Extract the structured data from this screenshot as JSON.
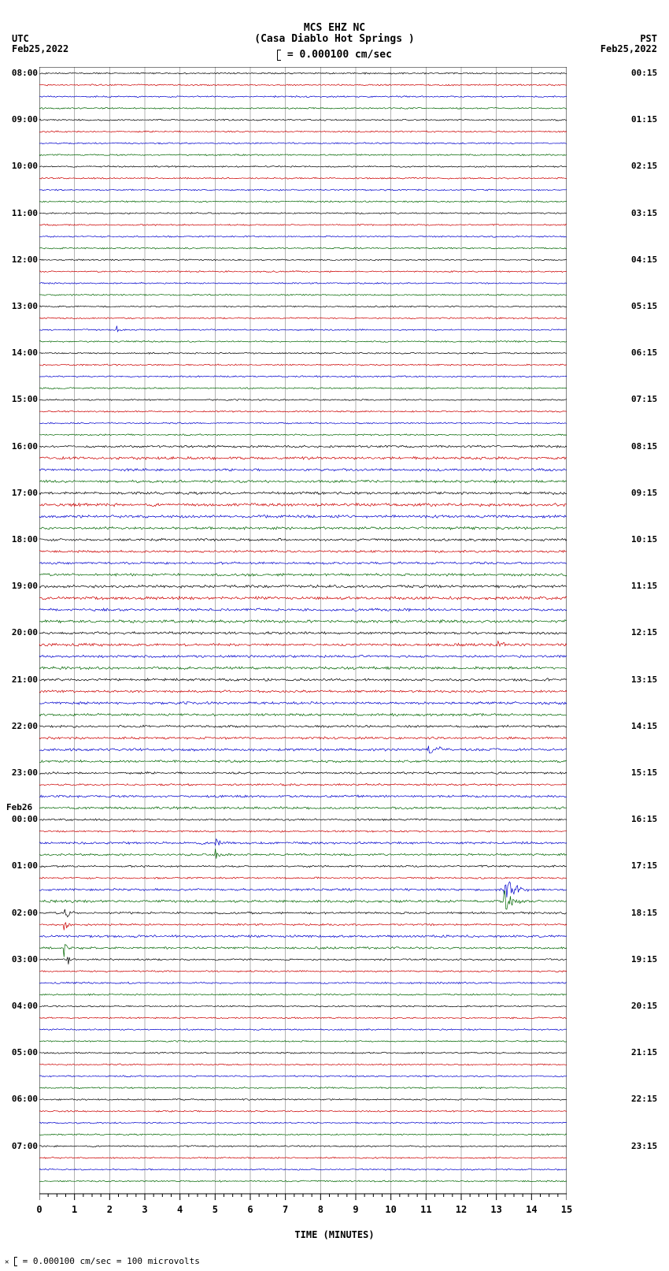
{
  "title_line1": "MCS EHZ NC",
  "title_line2": "(Casa Diablo Hot Springs )",
  "scale_bar_text": "= 0.000100 cm/sec",
  "left_tz": "UTC",
  "left_date": "Feb25,2022",
  "right_tz": "PST",
  "right_date": "Feb25,2022",
  "midnight_date_label": "Feb26",
  "xlabel": "TIME (MINUTES)",
  "footer_text": "= 0.000100 cm/sec =   100 microvolts",
  "colors": {
    "black": "#000000",
    "red": "#cc0000",
    "blue": "#0000cc",
    "green": "#006600",
    "grid": "#808080",
    "background": "#ffffff"
  },
  "plot": {
    "x_min": 0,
    "x_max": 15,
    "x_ticks": [
      0,
      1,
      2,
      3,
      4,
      5,
      6,
      7,
      8,
      9,
      10,
      11,
      12,
      13,
      14,
      15
    ],
    "n_traces": 96,
    "trace_spacing": 14.8,
    "trace_top_offset": 8,
    "color_cycle": [
      "black",
      "red",
      "blue",
      "green"
    ],
    "left_hour_labels": [
      {
        "idx": 0,
        "text": "08:00"
      },
      {
        "idx": 4,
        "text": "09:00"
      },
      {
        "idx": 8,
        "text": "10:00"
      },
      {
        "idx": 12,
        "text": "11:00"
      },
      {
        "idx": 16,
        "text": "12:00"
      },
      {
        "idx": 20,
        "text": "13:00"
      },
      {
        "idx": 24,
        "text": "14:00"
      },
      {
        "idx": 28,
        "text": "15:00"
      },
      {
        "idx": 32,
        "text": "16:00"
      },
      {
        "idx": 36,
        "text": "17:00"
      },
      {
        "idx": 40,
        "text": "18:00"
      },
      {
        "idx": 44,
        "text": "19:00"
      },
      {
        "idx": 48,
        "text": "20:00"
      },
      {
        "idx": 52,
        "text": "21:00"
      },
      {
        "idx": 56,
        "text": "22:00"
      },
      {
        "idx": 60,
        "text": "23:00"
      },
      {
        "idx": 64,
        "text": "00:00"
      },
      {
        "idx": 68,
        "text": "01:00"
      },
      {
        "idx": 72,
        "text": "02:00"
      },
      {
        "idx": 76,
        "text": "03:00"
      },
      {
        "idx": 80,
        "text": "04:00"
      },
      {
        "idx": 84,
        "text": "05:00"
      },
      {
        "idx": 88,
        "text": "06:00"
      },
      {
        "idx": 92,
        "text": "07:00"
      }
    ],
    "right_hour_labels": [
      {
        "idx": 0,
        "text": "00:15"
      },
      {
        "idx": 4,
        "text": "01:15"
      },
      {
        "idx": 8,
        "text": "02:15"
      },
      {
        "idx": 12,
        "text": "03:15"
      },
      {
        "idx": 16,
        "text": "04:15"
      },
      {
        "idx": 20,
        "text": "05:15"
      },
      {
        "idx": 24,
        "text": "06:15"
      },
      {
        "idx": 28,
        "text": "07:15"
      },
      {
        "idx": 32,
        "text": "08:15"
      },
      {
        "idx": 36,
        "text": "09:15"
      },
      {
        "idx": 40,
        "text": "10:15"
      },
      {
        "idx": 44,
        "text": "11:15"
      },
      {
        "idx": 48,
        "text": "12:15"
      },
      {
        "idx": 52,
        "text": "13:15"
      },
      {
        "idx": 56,
        "text": "14:15"
      },
      {
        "idx": 60,
        "text": "15:15"
      },
      {
        "idx": 64,
        "text": "16:15"
      },
      {
        "idx": 68,
        "text": "17:15"
      },
      {
        "idx": 72,
        "text": "18:15"
      },
      {
        "idx": 76,
        "text": "19:15"
      },
      {
        "idx": 80,
        "text": "20:15"
      },
      {
        "idx": 84,
        "text": "21:15"
      },
      {
        "idx": 88,
        "text": "22:15"
      },
      {
        "idx": 92,
        "text": "23:15"
      }
    ],
    "midnight_idx": 63,
    "noise_amplitude_base": 1.2,
    "noise_amplitude_variation": [
      1,
      1,
      1,
      1,
      1,
      1,
      1,
      1,
      1,
      1,
      1,
      1,
      1,
      1,
      1,
      1,
      1,
      1,
      1,
      1,
      1,
      1,
      1,
      1,
      1,
      1,
      1,
      1,
      1,
      1,
      1,
      1,
      1.5,
      1.8,
      1.6,
      1.7,
      1.8,
      2,
      1.9,
      1.8,
      1.6,
      1.5,
      1.6,
      1.7,
      1.9,
      2,
      1.8,
      1.9,
      1.7,
      1.8,
      1.6,
      1.8,
      1.7,
      1.6,
      1.8,
      1.6,
      1.5,
      1.6,
      1.7,
      1.5,
      1.4,
      1.3,
      1.5,
      1.6,
      1.3,
      1.2,
      1.5,
      1.4,
      1.3,
      1.2,
      1.5,
      1.8,
      1.4,
      1.3,
      1.6,
      1.5,
      1.2,
      1.1,
      1.2,
      1.1,
      1,
      1,
      1,
      1,
      1,
      1,
      1,
      1,
      1,
      1,
      1,
      1,
      1,
      1,
      1,
      1
    ],
    "events": [
      {
        "trace": 22,
        "x": 2.2,
        "amp": 6,
        "width": 0.3
      },
      {
        "trace": 49,
        "x": 13.0,
        "amp": 10,
        "width": 0.5
      },
      {
        "trace": 66,
        "x": 5.0,
        "amp": 12,
        "width": 0.4
      },
      {
        "trace": 67,
        "x": 5.0,
        "amp": 8,
        "width": 0.35
      },
      {
        "trace": 70,
        "x": 13.2,
        "amp": 25,
        "width": 0.9
      },
      {
        "trace": 71,
        "x": 13.2,
        "amp": 18,
        "width": 0.8
      },
      {
        "trace": 72,
        "x": 0.7,
        "amp": 18,
        "width": 0.4
      },
      {
        "trace": 73,
        "x": 0.7,
        "amp": 12,
        "width": 0.35
      },
      {
        "trace": 75,
        "x": 0.7,
        "amp": 14,
        "width": 0.3
      },
      {
        "trace": 76,
        "x": 0.8,
        "amp": 10,
        "width": 0.3
      },
      {
        "trace": 58,
        "x": 11.0,
        "amp": 7,
        "width": 1.5
      }
    ]
  }
}
